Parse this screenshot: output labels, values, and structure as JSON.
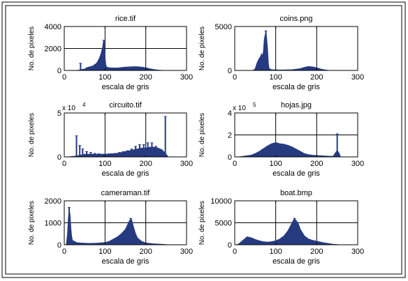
{
  "figure": {
    "border": true
  },
  "colors": {
    "bars": "#263a80",
    "axes": "#000000",
    "grid": "#000000",
    "background": "#ffffff"
  },
  "chart_data": [
    {
      "type": "bar",
      "title": "rice.tif",
      "xlabel": "escala de gris",
      "ylabel": "No. de pixeles",
      "xlim": [
        0,
        300
      ],
      "ylim": [
        0,
        4000
      ],
      "xticks": [
        "0",
        "100",
        "200",
        "300"
      ],
      "yticks": [
        "0",
        "2000",
        "4000"
      ],
      "multiplier": "",
      "grid": true,
      "points": [
        [
          30,
          0
        ],
        [
          40,
          50
        ],
        [
          45,
          100
        ],
        [
          50,
          120
        ],
        [
          55,
          250
        ],
        [
          60,
          300
        ],
        [
          65,
          350
        ],
        [
          70,
          400
        ],
        [
          72,
          450
        ],
        [
          75,
          550
        ],
        [
          78,
          600
        ],
        [
          80,
          700
        ],
        [
          82,
          800
        ],
        [
          84,
          950
        ],
        [
          86,
          1100
        ],
        [
          88,
          1300
        ],
        [
          90,
          1500
        ],
        [
          92,
          1800
        ],
        [
          94,
          2100
        ],
        [
          96,
          2600
        ],
        [
          98,
          2700
        ],
        [
          100,
          1200
        ],
        [
          102,
          500
        ],
        [
          104,
          300
        ],
        [
          110,
          250
        ],
        [
          120,
          220
        ],
        [
          130,
          220
        ],
        [
          140,
          260
        ],
        [
          150,
          300
        ],
        [
          160,
          320
        ],
        [
          170,
          340
        ],
        [
          180,
          330
        ],
        [
          190,
          300
        ],
        [
          200,
          250
        ],
        [
          210,
          150
        ],
        [
          220,
          80
        ],
        [
          230,
          30
        ],
        [
          240,
          0
        ]
      ],
      "spikes": [
        [
          40,
          650
        ],
        [
          97,
          2750
        ]
      ]
    },
    {
      "type": "bar",
      "title": "coins.png",
      "xlabel": "escala de gris",
      "ylabel": "No. de pixeles",
      "xlim": [
        0,
        300
      ],
      "ylim": [
        0,
        5000
      ],
      "xticks": [
        "0",
        "100",
        "200",
        "300"
      ],
      "yticks": [
        "0",
        "5000"
      ],
      "multiplier": "",
      "grid": true,
      "points": [
        [
          45,
          0
        ],
        [
          50,
          200
        ],
        [
          52,
          500
        ],
        [
          54,
          800
        ],
        [
          56,
          1000
        ],
        [
          58,
          1200
        ],
        [
          60,
          1400
        ],
        [
          62,
          1500
        ],
        [
          64,
          1700
        ],
        [
          66,
          1900
        ],
        [
          68,
          1500
        ],
        [
          70,
          2200
        ],
        [
          72,
          3500
        ],
        [
          74,
          4000
        ],
        [
          76,
          4400
        ],
        [
          78,
          3600
        ],
        [
          80,
          2500
        ],
        [
          82,
          800
        ],
        [
          84,
          200
        ],
        [
          90,
          80
        ],
        [
          100,
          60
        ],
        [
          120,
          50
        ],
        [
          140,
          80
        ],
        [
          160,
          200
        ],
        [
          170,
          350
        ],
        [
          180,
          450
        ],
        [
          190,
          400
        ],
        [
          200,
          300
        ],
        [
          210,
          150
        ],
        [
          220,
          60
        ],
        [
          230,
          0
        ]
      ],
      "spikes": [
        [
          76,
          4500
        ]
      ]
    },
    {
      "type": "bar",
      "title": "circuito.tif",
      "xlabel": "escala de gris",
      "ylabel": "No. de pixeles",
      "xlim": [
        0,
        300
      ],
      "ylim": [
        0,
        5
      ],
      "xticks": [
        "0",
        "100",
        "200",
        "300"
      ],
      "yticks": [
        "0",
        "5"
      ],
      "multiplier": "x 10",
      "multiplier_exp": "4",
      "grid": true,
      "points": [
        [
          10,
          0
        ],
        [
          20,
          0.05
        ],
        [
          30,
          0.1
        ],
        [
          40,
          0.2
        ],
        [
          50,
          0.3
        ],
        [
          60,
          0.3
        ],
        [
          70,
          0.3
        ],
        [
          80,
          0.3
        ],
        [
          90,
          0.3
        ],
        [
          100,
          0.3
        ],
        [
          110,
          0.35
        ],
        [
          120,
          0.35
        ],
        [
          130,
          0.4
        ],
        [
          140,
          0.5
        ],
        [
          150,
          0.6
        ],
        [
          160,
          0.7
        ],
        [
          170,
          0.8
        ],
        [
          180,
          0.9
        ],
        [
          190,
          1.0
        ],
        [
          200,
          1.0
        ],
        [
          210,
          1.1
        ],
        [
          220,
          1.1
        ],
        [
          230,
          1.0
        ],
        [
          240,
          0.8
        ],
        [
          250,
          0.3
        ],
        [
          255,
          0
        ]
      ],
      "spikes": [
        [
          30,
          2.4
        ],
        [
          38,
          1.3
        ],
        [
          45,
          0.9
        ],
        [
          55,
          0.6
        ],
        [
          65,
          0.5
        ],
        [
          75,
          0.4
        ],
        [
          85,
          0.35
        ],
        [
          95,
          0.3
        ],
        [
          105,
          0.3
        ],
        [
          115,
          0.35
        ],
        [
          125,
          0.4
        ],
        [
          135,
          0.5
        ],
        [
          145,
          0.6
        ],
        [
          155,
          0.7
        ],
        [
          165,
          0.9
        ],
        [
          175,
          1.2
        ],
        [
          185,
          1.4
        ],
        [
          195,
          1.4
        ],
        [
          205,
          1.6
        ],
        [
          215,
          1.6
        ],
        [
          225,
          1.2
        ],
        [
          235,
          0.8
        ],
        [
          248,
          4.6
        ]
      ]
    },
    {
      "type": "bar",
      "title": "hojas.jpg",
      "xlabel": "escala de gris",
      "ylabel": "No. de pixeles",
      "xlim": [
        0,
        300
      ],
      "ylim": [
        0,
        4
      ],
      "xticks": [
        "0",
        "100",
        "200",
        "300"
      ],
      "yticks": [
        "0",
        "2",
        "4"
      ],
      "multiplier": "x 10",
      "multiplier_exp": "5",
      "grid": true,
      "points": [
        [
          10,
          0
        ],
        [
          20,
          0.05
        ],
        [
          30,
          0.1
        ],
        [
          40,
          0.15
        ],
        [
          50,
          0.3
        ],
        [
          60,
          0.5
        ],
        [
          70,
          0.75
        ],
        [
          80,
          1.0
        ],
        [
          90,
          1.2
        ],
        [
          100,
          1.3
        ],
        [
          110,
          1.2
        ],
        [
          120,
          1.15
        ],
        [
          130,
          1.05
        ],
        [
          140,
          0.9
        ],
        [
          150,
          0.7
        ],
        [
          160,
          0.5
        ],
        [
          170,
          0.3
        ],
        [
          180,
          0.2
        ],
        [
          190,
          0.15
        ],
        [
          200,
          0.12
        ],
        [
          210,
          0.1
        ],
        [
          220,
          0.08
        ],
        [
          230,
          0.06
        ],
        [
          240,
          0.05
        ],
        [
          250,
          0.6
        ],
        [
          255,
          0.3
        ],
        [
          258,
          0
        ]
      ],
      "spikes": [
        [
          250,
          2.1
        ]
      ]
    },
    {
      "type": "bar",
      "title": "cameraman.tif",
      "xlabel": "escala de gris",
      "ylabel": "No. de pixeles",
      "xlim": [
        0,
        300
      ],
      "ylim": [
        0,
        2000
      ],
      "xticks": [
        "0",
        "100",
        "200",
        "300"
      ],
      "yticks": [
        "0",
        "1000",
        "2000"
      ],
      "multiplier": "",
      "grid": true,
      "points": [
        [
          5,
          0
        ],
        [
          8,
          500
        ],
        [
          10,
          1200
        ],
        [
          12,
          1600
        ],
        [
          14,
          1400
        ],
        [
          16,
          800
        ],
        [
          18,
          400
        ],
        [
          20,
          200
        ],
        [
          30,
          100
        ],
        [
          40,
          80
        ],
        [
          60,
          60
        ],
        [
          80,
          70
        ],
        [
          100,
          100
        ],
        [
          110,
          150
        ],
        [
          120,
          250
        ],
        [
          130,
          350
        ],
        [
          140,
          500
        ],
        [
          150,
          700
        ],
        [
          155,
          900
        ],
        [
          160,
          1100
        ],
        [
          165,
          1150
        ],
        [
          170,
          800
        ],
        [
          175,
          500
        ],
        [
          180,
          300
        ],
        [
          190,
          150
        ],
        [
          200,
          80
        ],
        [
          220,
          40
        ],
        [
          240,
          20
        ],
        [
          255,
          0
        ]
      ],
      "spikes": [
        [
          12,
          1700
        ],
        [
          163,
          1200
        ]
      ]
    },
    {
      "type": "bar",
      "title": "boat.bmp",
      "xlabel": "escala de gris",
      "ylabel": "No. de pixeles",
      "xlim": [
        0,
        300
      ],
      "ylim": [
        0,
        10000
      ],
      "xticks": [
        "0",
        "100",
        "200",
        "300"
      ],
      "yticks": [
        "0",
        "5000",
        "10000"
      ],
      "multiplier": "",
      "grid": true,
      "points": [
        [
          5,
          0
        ],
        [
          10,
          200
        ],
        [
          20,
          1000
        ],
        [
          30,
          1800
        ],
        [
          40,
          1600
        ],
        [
          50,
          1200
        ],
        [
          60,
          900
        ],
        [
          70,
          700
        ],
        [
          80,
          600
        ],
        [
          90,
          700
        ],
        [
          100,
          900
        ],
        [
          110,
          1300
        ],
        [
          120,
          2000
        ],
        [
          130,
          3200
        ],
        [
          140,
          5000
        ],
        [
          145,
          5900
        ],
        [
          150,
          5500
        ],
        [
          155,
          4800
        ],
        [
          160,
          3500
        ],
        [
          170,
          2000
        ],
        [
          180,
          1300
        ],
        [
          190,
          1000
        ],
        [
          200,
          800
        ],
        [
          210,
          600
        ],
        [
          220,
          400
        ],
        [
          230,
          250
        ],
        [
          240,
          100
        ],
        [
          250,
          30
        ],
        [
          255,
          0
        ]
      ],
      "spikes": [
        [
          146,
          6000
        ]
      ]
    }
  ]
}
